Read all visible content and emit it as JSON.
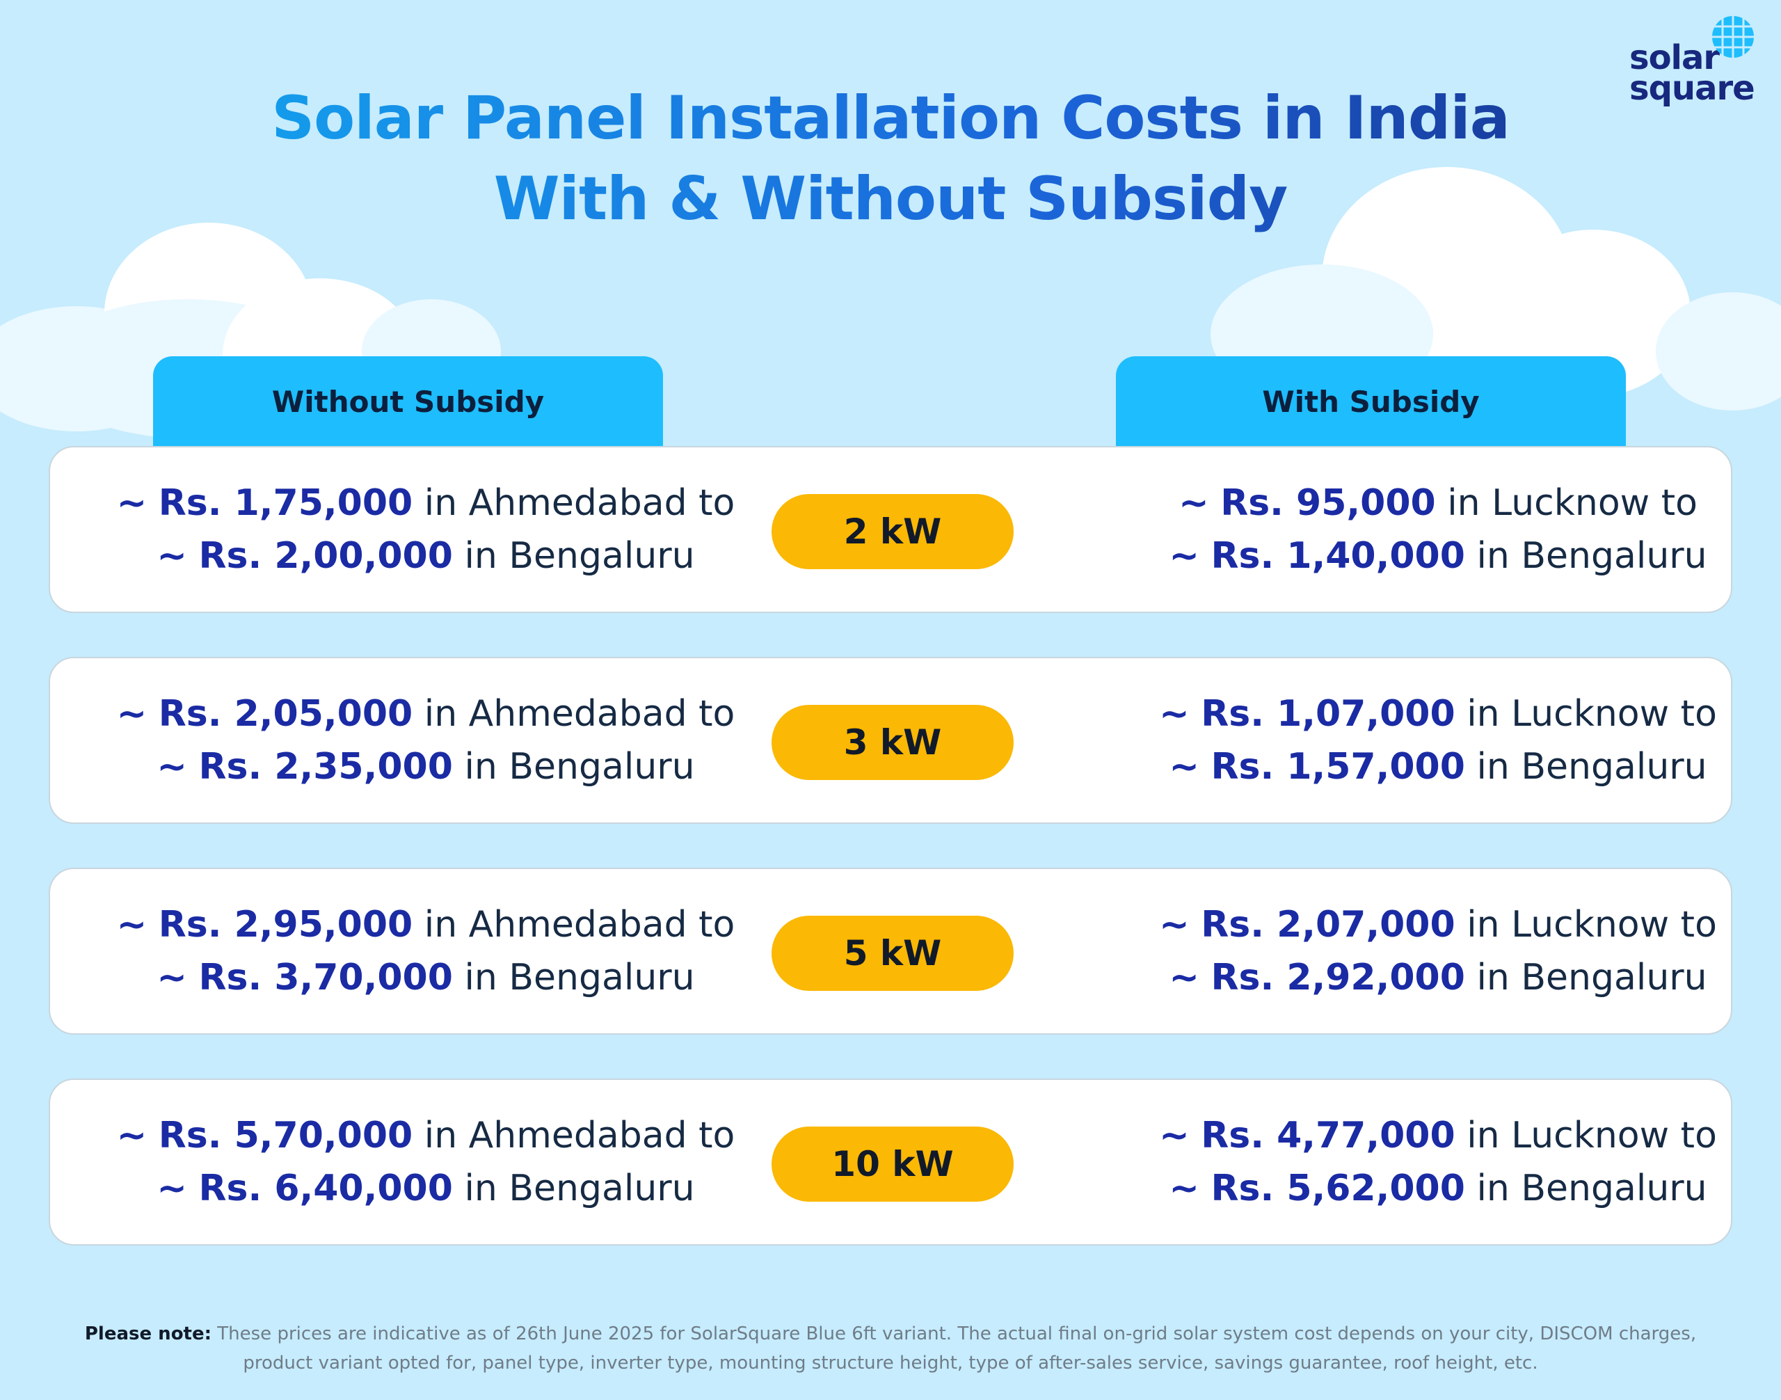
{
  "brand": {
    "line1": "solar",
    "line2": "square"
  },
  "title": {
    "line1": "Solar Panel Installation Costs in India",
    "line2": "With & Without Subsidy"
  },
  "headers": {
    "without": "Without Subsidy",
    "with": "With Subsidy"
  },
  "tilde": "~",
  "rows": [
    {
      "kw": "2 kW",
      "without": {
        "l1": {
          "amount": "Rs. 1,75,000",
          "text": " in Ahmedabad to"
        },
        "l2": {
          "amount": "Rs. 2,00,000",
          "text": " in Bengaluru"
        }
      },
      "with": {
        "l1": {
          "amount": "Rs. 95,000",
          "text": " in Lucknow to"
        },
        "l2": {
          "amount": "Rs. 1,40,000",
          "text": " in Bengaluru"
        }
      }
    },
    {
      "kw": "3 kW",
      "without": {
        "l1": {
          "amount": "Rs. 2,05,000",
          "text": " in Ahmedabad to"
        },
        "l2": {
          "amount": "Rs. 2,35,000",
          "text": " in Bengaluru"
        }
      },
      "with": {
        "l1": {
          "amount": "Rs. 1,07,000",
          "text": " in Lucknow to"
        },
        "l2": {
          "amount": "Rs. 1,57,000",
          "text": " in Bengaluru"
        }
      }
    },
    {
      "kw": "5 kW",
      "without": {
        "l1": {
          "amount": "Rs. 2,95,000",
          "text": " in Ahmedabad to"
        },
        "l2": {
          "amount": "Rs. 3,70,000",
          "text": " in Bengaluru"
        }
      },
      "with": {
        "l1": {
          "amount": "Rs. 2,07,000",
          "text": " in Lucknow to"
        },
        "l2": {
          "amount": "Rs. 2,92,000",
          "text": " in Bengaluru"
        }
      }
    },
    {
      "kw": "10 kW",
      "without": {
        "l1": {
          "amount": "Rs. 5,70,000",
          "text": " in Ahmedabad to"
        },
        "l2": {
          "amount": "Rs. 6,40,000",
          "text": " in Bengaluru"
        }
      },
      "with": {
        "l1": {
          "amount": "Rs. 4,77,000",
          "text": " in Lucknow to"
        },
        "l2": {
          "amount": "Rs. 5,62,000",
          "text": " in Bengaluru"
        }
      }
    }
  ],
  "note": {
    "label": "Please note:",
    "line1": " These prices are indicative as of 26th June 2025 for SolarSquare Blue 6ft variant. The actual final on-grid solar system cost depends on your city, DISCOM charges,",
    "line2": "product variant opted for, panel type, inverter type, mounting structure height, type of after-sales service, savings guarantee, roof height, etc."
  },
  "colors": {
    "background": "#c6ecfd",
    "header_tab": "#1ebdfd",
    "badge": "#fbb804",
    "amount": "#1a2ba4",
    "brand": "#17287e"
  }
}
